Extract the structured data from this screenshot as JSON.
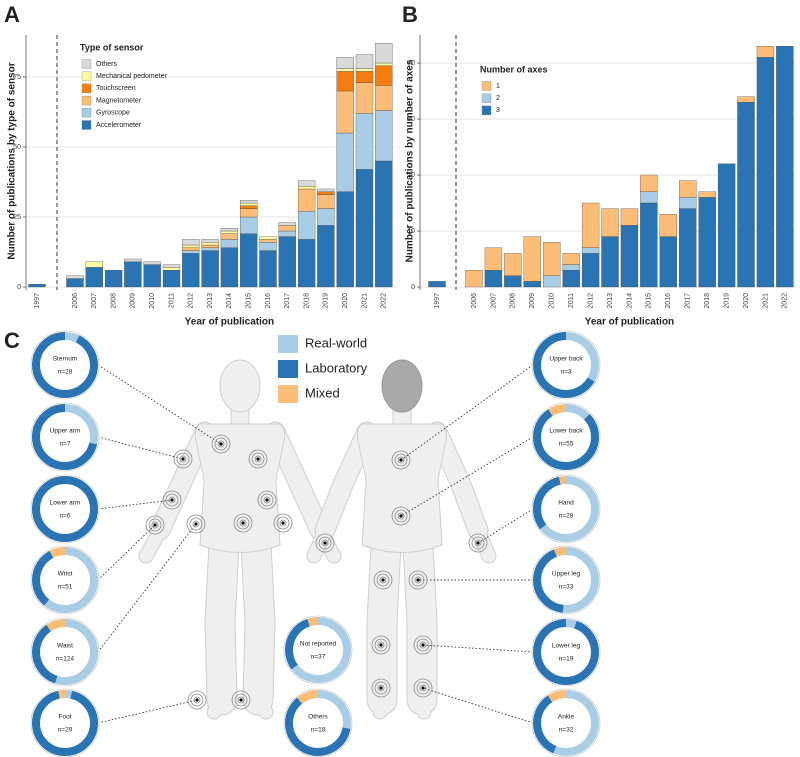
{
  "chart_data": [
    {
      "type": "bar",
      "stacked": true,
      "panel_label": "A",
      "x_label": "Year of publication",
      "y_label": "Number of publications by type of sensor",
      "legend_title": "Type of sensor",
      "grid": true,
      "categories": [
        "1997",
        "2006",
        "2007",
        "2008",
        "2009",
        "2010",
        "2011",
        "2012",
        "2013",
        "2014",
        "2015",
        "2016",
        "2017",
        "2018",
        "2019",
        "2020",
        "2021",
        "2022"
      ],
      "ylim": [
        0,
        90
      ],
      "yticks": [
        0,
        25,
        50,
        75
      ],
      "series": [
        {
          "name": "Accelerometer",
          "color": "#2b74b3",
          "values": [
            1,
            3,
            7,
            6,
            9,
            8,
            6,
            12,
            13,
            14,
            19,
            13,
            18,
            17,
            22,
            34,
            42,
            45
          ]
        },
        {
          "name": "Gyroscope",
          "color": "#a8cde5",
          "values": [
            0,
            0,
            0,
            0,
            0,
            0,
            0,
            1,
            1,
            3,
            6,
            3,
            2,
            10,
            6,
            21,
            20,
            18
          ]
        },
        {
          "name": "Magnetometer",
          "color": "#fbbd77",
          "values": [
            0,
            0,
            0,
            0,
            0,
            0,
            0,
            1,
            1,
            2,
            3,
            1,
            2,
            8,
            5,
            15,
            11,
            9
          ]
        },
        {
          "name": "Touchscreen",
          "color": "#f57d0f",
          "values": [
            0,
            0,
            0,
            0,
            0,
            0,
            0,
            0,
            0,
            0,
            1,
            0,
            0,
            0,
            1,
            7,
            4,
            7
          ]
        },
        {
          "name": "Mechanical pedometer",
          "color": "#fcf9a3",
          "values": [
            0,
            0,
            2,
            0,
            0,
            0,
            1,
            1,
            1,
            1,
            1,
            1,
            0,
            1,
            0,
            1,
            1,
            1
          ]
        },
        {
          "name": "Others",
          "color": "#d9d9d9",
          "values": [
            0,
            1,
            0,
            0,
            1,
            1,
            1,
            2,
            1,
            1,
            1,
            0,
            1,
            2,
            1,
            4,
            5,
            7
          ]
        }
      ]
    },
    {
      "type": "bar",
      "stacked": true,
      "panel_label": "B",
      "x_label": "Year of publication",
      "y_label": "Number of publications by number of axes",
      "legend_title": "Number of axes",
      "grid": true,
      "categories": [
        "1997",
        "2006",
        "2007",
        "2008",
        "2009",
        "2010",
        "2011",
        "2012",
        "2013",
        "2014",
        "2015",
        "2016",
        "2017",
        "2018",
        "2019",
        "2020",
        "2021",
        "2022"
      ],
      "ylim": [
        0,
        45
      ],
      "yticks": [
        0,
        10,
        20,
        30,
        40
      ],
      "series": [
        {
          "name": "3",
          "color": "#2b74b3",
          "values": [
            1,
            0,
            3,
            2,
            1,
            0,
            3,
            6,
            9,
            11,
            15,
            9,
            14,
            16,
            22,
            33,
            41,
            43
          ]
        },
        {
          "name": "2",
          "color": "#a8cde5",
          "values": [
            0,
            0,
            0,
            0,
            0,
            2,
            1,
            1,
            0,
            0,
            2,
            0,
            2,
            0,
            0,
            0,
            0,
            0
          ]
        },
        {
          "name": "1",
          "color": "#fbbd77",
          "values": [
            0,
            3,
            4,
            4,
            8,
            6,
            2,
            8,
            5,
            3,
            3,
            4,
            3,
            1,
            0,
            1,
            2,
            0
          ]
        }
      ]
    },
    {
      "type": "donut",
      "panel_label": "C",
      "series": [
        {
          "name": "Real-world",
          "color": "#a8cde5"
        },
        {
          "name": "Laboratory",
          "color": "#2b74b3"
        },
        {
          "name": "Mixed",
          "color": "#fbbd77"
        }
      ],
      "donuts": [
        {
          "name": "Sternum",
          "label": "n=28",
          "values": [
            2,
            26,
            0
          ]
        },
        {
          "name": "Upper arm",
          "label": "n=7",
          "values": [
            2,
            5,
            0
          ]
        },
        {
          "name": "Lower arm",
          "label": "n=6",
          "values": [
            0,
            6,
            0
          ]
        },
        {
          "name": "Wrist",
          "label": "n=51",
          "values": [
            31,
            16,
            4
          ]
        },
        {
          "name": "Waist",
          "label": "n=124",
          "values": [
            68,
            44,
            12
          ]
        },
        {
          "name": "Foot",
          "label": "n=29",
          "values": [
            1,
            27,
            1
          ]
        },
        {
          "name": "Not reported",
          "label": "n=37",
          "values": [
            24,
            11,
            2
          ]
        },
        {
          "name": "Others",
          "label": "n=18",
          "values": [
            5,
            11,
            2
          ]
        },
        {
          "name": "Upper back",
          "label": "n=3",
          "values": [
            1,
            2,
            0
          ]
        },
        {
          "name": "Lower back",
          "label": "n=55",
          "values": [
            7,
            43,
            5
          ]
        },
        {
          "name": "Hand",
          "label": "n=28",
          "values": [
            18,
            9,
            1
          ]
        },
        {
          "name": "Upper leg",
          "label": "n=33",
          "values": [
            17,
            14,
            2
          ]
        },
        {
          "name": "Lower leg",
          "label": "n=19",
          "values": [
            1,
            18,
            0
          ]
        },
        {
          "name": "Ankle",
          "label": "n=32",
          "values": [
            18,
            11,
            3
          ]
        }
      ]
    }
  ]
}
